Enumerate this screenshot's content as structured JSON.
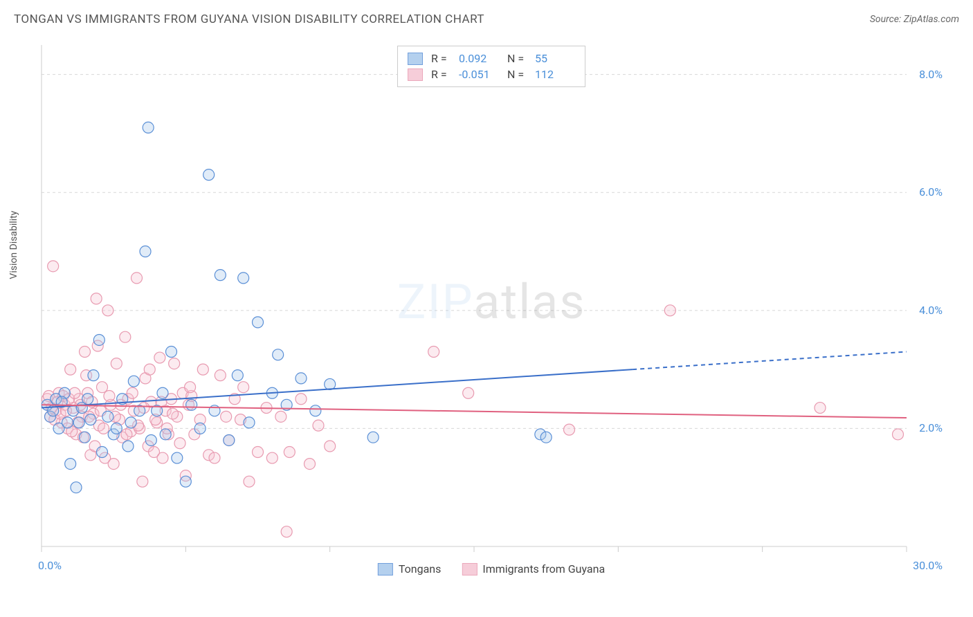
{
  "title": "TONGAN VS IMMIGRANTS FROM GUYANA VISION DISABILITY CORRELATION CHART",
  "source": "Source: ZipAtlas.com",
  "watermark_a": "ZIP",
  "watermark_b": "atlas",
  "y_axis_label": "Vision Disability",
  "chart": {
    "type": "scatter",
    "xlim": [
      0,
      30
    ],
    "ylim": [
      0,
      8.5
    ],
    "x_ticks": [
      0,
      5,
      10,
      15,
      20,
      25,
      30
    ],
    "x_tick_labels": [
      "0.0%",
      "",
      "",
      "",
      "",
      "",
      "30.0%"
    ],
    "y_ticks": [
      2,
      4,
      6,
      8
    ],
    "y_tick_labels": [
      "2.0%",
      "4.0%",
      "6.0%",
      "8.0%"
    ],
    "grid_color": "#d8d8d8",
    "axis_color": "#cccccc",
    "tick_label_color": "#4a8fd9",
    "axis_label_color": "#555555",
    "background": "#ffffff",
    "marker_radius": 8,
    "marker_stroke_width": 1.2,
    "marker_fill_opacity": 0.35,
    "series": [
      {
        "name": "Tongans",
        "color_stroke": "#5a8fd6",
        "color_fill": "#a8c8ec",
        "R": "0.092",
        "N": "55",
        "trend": {
          "x1": 0,
          "y1": 2.35,
          "x2_solid": 20.5,
          "y2_solid": 3.0,
          "x2_dash": 30,
          "y2_dash": 3.3
        },
        "points": [
          [
            0.2,
            2.4
          ],
          [
            0.3,
            2.2
          ],
          [
            0.5,
            2.5
          ],
          [
            0.6,
            2.0
          ],
          [
            0.8,
            2.6
          ],
          [
            1.0,
            1.4
          ],
          [
            1.1,
            2.3
          ],
          [
            1.2,
            1.0
          ],
          [
            1.3,
            2.1
          ],
          [
            1.5,
            1.85
          ],
          [
            1.6,
            2.5
          ],
          [
            1.8,
            2.9
          ],
          [
            2.0,
            3.5
          ],
          [
            2.1,
            1.6
          ],
          [
            2.3,
            2.2
          ],
          [
            2.5,
            1.9
          ],
          [
            2.8,
            2.5
          ],
          [
            3.0,
            1.7
          ],
          [
            3.2,
            2.8
          ],
          [
            3.4,
            2.3
          ],
          [
            3.6,
            5.0
          ],
          [
            3.7,
            7.1
          ],
          [
            3.8,
            1.8
          ],
          [
            4.0,
            2.3
          ],
          [
            4.2,
            2.6
          ],
          [
            4.5,
            3.3
          ],
          [
            4.7,
            1.5
          ],
          [
            5.0,
            1.1
          ],
          [
            5.2,
            2.4
          ],
          [
            5.5,
            2.0
          ],
          [
            5.8,
            6.3
          ],
          [
            6.0,
            2.3
          ],
          [
            6.2,
            4.6
          ],
          [
            6.5,
            1.8
          ],
          [
            6.8,
            2.9
          ],
          [
            7.0,
            4.55
          ],
          [
            7.2,
            2.1
          ],
          [
            7.5,
            3.8
          ],
          [
            8.0,
            2.6
          ],
          [
            8.2,
            3.25
          ],
          [
            8.5,
            2.4
          ],
          [
            9.0,
            2.85
          ],
          [
            9.5,
            2.3
          ],
          [
            10.0,
            2.75
          ],
          [
            11.5,
            1.85
          ],
          [
            17.3,
            1.9
          ],
          [
            17.5,
            1.85
          ],
          [
            0.9,
            2.1
          ],
          [
            1.4,
            2.35
          ],
          [
            2.6,
            2.0
          ],
          [
            3.1,
            2.1
          ],
          [
            4.3,
            1.9
          ],
          [
            0.4,
            2.3
          ],
          [
            0.7,
            2.45
          ],
          [
            1.7,
            2.15
          ]
        ]
      },
      {
        "name": "Immigrants from Guyana",
        "color_stroke": "#e89ab0",
        "color_fill": "#f5c5d3",
        "R": "-0.051",
        "N": "112",
        "trend": {
          "x1": 0,
          "y1": 2.4,
          "x2_solid": 30,
          "y2_solid": 2.18,
          "x2_dash": 30,
          "y2_dash": 2.18
        },
        "points": [
          [
            0.2,
            2.5
          ],
          [
            0.3,
            2.2
          ],
          [
            0.4,
            4.75
          ],
          [
            0.5,
            2.3
          ],
          [
            0.6,
            2.6
          ],
          [
            0.7,
            2.1
          ],
          [
            0.8,
            2.4
          ],
          [
            0.9,
            2.0
          ],
          [
            1.0,
            3.0
          ],
          [
            1.1,
            2.35
          ],
          [
            1.2,
            1.9
          ],
          [
            1.3,
            2.5
          ],
          [
            1.4,
            2.2
          ],
          [
            1.5,
            3.3
          ],
          [
            1.6,
            2.6
          ],
          [
            1.7,
            1.55
          ],
          [
            1.8,
            2.25
          ],
          [
            1.9,
            4.2
          ],
          [
            2.0,
            2.05
          ],
          [
            2.1,
            2.7
          ],
          [
            2.2,
            1.5
          ],
          [
            2.3,
            4.0
          ],
          [
            2.4,
            2.4
          ],
          [
            2.5,
            1.4
          ],
          [
            2.6,
            3.1
          ],
          [
            2.7,
            2.15
          ],
          [
            2.8,
            1.85
          ],
          [
            2.9,
            3.55
          ],
          [
            3.0,
            2.5
          ],
          [
            3.1,
            1.95
          ],
          [
            3.2,
            2.3
          ],
          [
            3.3,
            4.55
          ],
          [
            3.4,
            2.0
          ],
          [
            3.5,
            1.1
          ],
          [
            3.6,
            2.85
          ],
          [
            3.7,
            1.7
          ],
          [
            3.8,
            2.45
          ],
          [
            3.9,
            1.6
          ],
          [
            4.0,
            2.1
          ],
          [
            4.1,
            3.2
          ],
          [
            4.2,
            1.5
          ],
          [
            4.3,
            2.3
          ],
          [
            4.4,
            1.9
          ],
          [
            4.5,
            2.5
          ],
          [
            4.6,
            3.1
          ],
          [
            4.7,
            2.2
          ],
          [
            4.8,
            1.75
          ],
          [
            4.9,
            2.6
          ],
          [
            5.0,
            1.2
          ],
          [
            5.1,
            2.4
          ],
          [
            5.2,
            2.55
          ],
          [
            5.3,
            1.9
          ],
          [
            5.5,
            2.15
          ],
          [
            5.6,
            3.0
          ],
          [
            5.8,
            1.55
          ],
          [
            6.0,
            1.5
          ],
          [
            6.2,
            2.9
          ],
          [
            6.4,
            2.2
          ],
          [
            6.5,
            1.8
          ],
          [
            6.7,
            2.5
          ],
          [
            6.9,
            2.15
          ],
          [
            7.0,
            2.7
          ],
          [
            7.2,
            1.1
          ],
          [
            7.5,
            1.6
          ],
          [
            7.8,
            2.35
          ],
          [
            8.0,
            1.5
          ],
          [
            8.3,
            2.2
          ],
          [
            8.5,
            0.25
          ],
          [
            8.6,
            1.6
          ],
          [
            9.0,
            2.5
          ],
          [
            9.3,
            1.4
          ],
          [
            9.6,
            2.05
          ],
          [
            10.0,
            1.7
          ],
          [
            13.6,
            3.3
          ],
          [
            14.8,
            2.6
          ],
          [
            18.3,
            1.98
          ],
          [
            21.8,
            4.0
          ],
          [
            27.0,
            2.35
          ],
          [
            29.7,
            1.9
          ],
          [
            0.25,
            2.55
          ],
          [
            0.35,
            2.35
          ],
          [
            0.45,
            2.15
          ],
          [
            0.55,
            2.45
          ],
          [
            0.65,
            2.25
          ],
          [
            0.75,
            2.55
          ],
          [
            0.85,
            2.3
          ],
          [
            0.95,
            2.5
          ],
          [
            1.05,
            1.95
          ],
          [
            1.15,
            2.6
          ],
          [
            1.25,
            2.1
          ],
          [
            1.35,
            2.4
          ],
          [
            1.45,
            1.85
          ],
          [
            1.55,
            2.9
          ],
          [
            1.65,
            2.2
          ],
          [
            1.75,
            2.45
          ],
          [
            1.85,
            1.7
          ],
          [
            1.95,
            3.4
          ],
          [
            2.05,
            2.3
          ],
          [
            2.15,
            2.0
          ],
          [
            2.35,
            2.55
          ],
          [
            2.55,
            2.2
          ],
          [
            2.75,
            2.4
          ],
          [
            2.95,
            1.9
          ],
          [
            3.15,
            2.6
          ],
          [
            3.35,
            2.05
          ],
          [
            3.55,
            2.35
          ],
          [
            3.75,
            3.0
          ],
          [
            3.95,
            2.15
          ],
          [
            4.15,
            2.45
          ],
          [
            4.35,
            2.0
          ],
          [
            4.55,
            2.25
          ],
          [
            5.15,
            2.7
          ]
        ]
      }
    ]
  },
  "stats_legend": {
    "r_label": "R =",
    "n_label": "N ="
  },
  "bottom_legend": {
    "series1": "Tongans",
    "series2": "Immigrants from Guyana"
  }
}
